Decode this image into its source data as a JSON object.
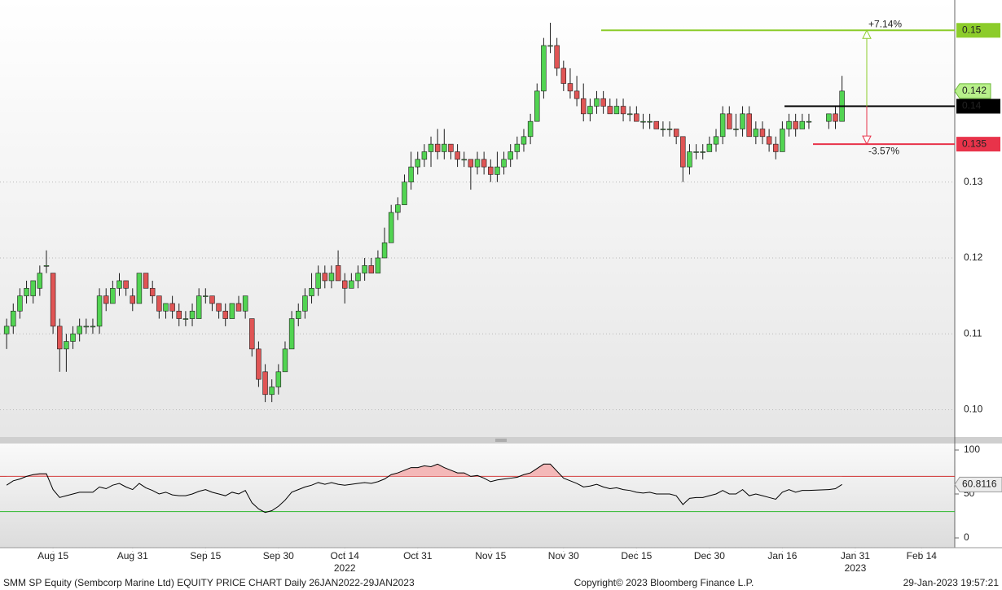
{
  "chart_data": [
    {
      "type": "candlestick",
      "up_color": "#52d452",
      "down_color": "#e05555",
      "outline": "#1e1e1e",
      "xlim": [
        "2022-08-03",
        "2023-02-21"
      ],
      "ylim": [
        0.0964,
        0.154
      ],
      "yticks": [
        {
          "value": 0.1,
          "label": "0.10"
        },
        0.11,
        0.12,
        0.13
      ],
      "grid": true,
      "xticks": [
        {
          "value": "2022-08-15",
          "label": "Aug 15"
        },
        {
          "value": "2022-08-31",
          "label": "Aug 31"
        },
        {
          "value": "2022-09-15",
          "label": "Sep 15"
        },
        {
          "value": "2022-09-30",
          "label": "Sep 30"
        },
        {
          "value": "2022-10-14",
          "label": "Oct 14"
        },
        {
          "value": "2022-10-31",
          "label": "Oct 31"
        },
        {
          "value": "2022-11-15",
          "label": "Nov 15"
        },
        {
          "value": "2022-11-30",
          "label": "Nov 30"
        },
        {
          "value": "2022-12-15",
          "label": "Dec 15"
        },
        {
          "value": "2022-12-30",
          "label": "Dec 30"
        },
        {
          "value": "2023-01-16",
          "label": "Jan 16"
        },
        {
          "value": "2023-01-31",
          "label": "Jan 31"
        },
        {
          "value": "2023-02-14",
          "label": "Feb 14"
        }
      ],
      "year_labels": [
        {
          "value": "2022-10-14",
          "label": "2022"
        },
        {
          "value": "2023-01-31",
          "label": "2023"
        }
      ],
      "levels": [
        {
          "value": 0.15,
          "color": "#8ccc2a"
        },
        {
          "value": 0.14,
          "color": "#000000"
        },
        {
          "value": 0.135,
          "color": "#e8334a"
        }
      ],
      "annotations": [
        "+7.14%",
        "-3.57%"
      ],
      "x": [
        "2022-08-04",
        "2022-08-05",
        "2022-08-08",
        "2022-08-09",
        "2022-08-10",
        "2022-08-11",
        "2022-08-12",
        "2022-08-15",
        "2022-08-16",
        "2022-08-17",
        "2022-08-18",
        "2022-08-19",
        "2022-08-22",
        "2022-08-23",
        "2022-08-24",
        "2022-08-25",
        "2022-08-26",
        "2022-08-29",
        "2022-08-30",
        "2022-08-31",
        "2022-09-01",
        "2022-09-02",
        "2022-09-05",
        "2022-09-06",
        "2022-09-07",
        "2022-09-08",
        "2022-09-09",
        "2022-09-12",
        "2022-09-13",
        "2022-09-14",
        "2022-09-15",
        "2022-09-16",
        "2022-09-19",
        "2022-09-20",
        "2022-09-21",
        "2022-09-22",
        "2022-09-23",
        "2022-09-26",
        "2022-09-27",
        "2022-09-28",
        "2022-09-29",
        "2022-09-30",
        "2022-10-03",
        "2022-10-04",
        "2022-10-05",
        "2022-10-06",
        "2022-10-07",
        "2022-10-10",
        "2022-10-11",
        "2022-10-12",
        "2022-10-13",
        "2022-10-14",
        "2022-10-17",
        "2022-10-18",
        "2022-10-19",
        "2022-10-20",
        "2022-10-21",
        "2022-10-24",
        "2022-10-25",
        "2022-10-26",
        "2022-10-27",
        "2022-10-28",
        "2022-10-31",
        "2022-11-01",
        "2022-11-02",
        "2022-11-03",
        "2022-11-04",
        "2022-11-07",
        "2022-11-08",
        "2022-11-09",
        "2022-11-10",
        "2022-11-11",
        "2022-11-14",
        "2022-11-15",
        "2022-11-16",
        "2022-11-17",
        "2022-11-18",
        "2022-11-21",
        "2022-11-22",
        "2022-11-23",
        "2022-11-24",
        "2022-11-25",
        "2022-11-28",
        "2022-11-29",
        "2022-11-30",
        "2022-12-01",
        "2022-12-02",
        "2022-12-05",
        "2022-12-06",
        "2022-12-07",
        "2022-12-08",
        "2022-12-09",
        "2022-12-12",
        "2022-12-13",
        "2022-12-14",
        "2022-12-15",
        "2022-12-16",
        "2022-12-19",
        "2022-12-20",
        "2022-12-21",
        "2022-12-22",
        "2022-12-23",
        "2022-12-26",
        "2022-12-27",
        "2022-12-28",
        "2022-12-29",
        "2022-12-30",
        "2023-01-02",
        "2023-01-03",
        "2023-01-04",
        "2023-01-05",
        "2023-01-06",
        "2023-01-09",
        "2023-01-10",
        "2023-01-11",
        "2023-01-12",
        "2023-01-13",
        "2023-01-16",
        "2023-01-17",
        "2023-01-18",
        "2023-01-19",
        "2023-01-20",
        "2023-01-25",
        "2023-01-26",
        "2023-01-27"
      ],
      "candles": [
        [
          0.11,
          0.112,
          0.108,
          0.111
        ],
        [
          0.111,
          0.114,
          0.11,
          0.113
        ],
        [
          0.113,
          0.116,
          0.112,
          0.115
        ],
        [
          0.115,
          0.117,
          0.114,
          0.116
        ],
        [
          0.115,
          0.117,
          0.114,
          0.117
        ],
        [
          0.116,
          0.119,
          0.115,
          0.118
        ],
        [
          0.119,
          0.121,
          0.118,
          0.119
        ],
        [
          0.118,
          0.118,
          0.11,
          0.111
        ],
        [
          0.111,
          0.112,
          0.105,
          0.108
        ],
        [
          0.108,
          0.11,
          0.105,
          0.109
        ],
        [
          0.109,
          0.111,
          0.108,
          0.11
        ],
        [
          0.11,
          0.112,
          0.109,
          0.111
        ],
        [
          0.111,
          0.112,
          0.11,
          0.111
        ],
        [
          0.111,
          0.112,
          0.11,
          0.111
        ],
        [
          0.111,
          0.116,
          0.11,
          0.115
        ],
        [
          0.115,
          0.116,
          0.113,
          0.114
        ],
        [
          0.114,
          0.117,
          0.114,
          0.116
        ],
        [
          0.116,
          0.118,
          0.115,
          0.117
        ],
        [
          0.117,
          0.117,
          0.115,
          0.116
        ],
        [
          0.115,
          0.116,
          0.113,
          0.114
        ],
        [
          0.114,
          0.118,
          0.114,
          0.118
        ],
        [
          0.118,
          0.118,
          0.116,
          0.116
        ],
        [
          0.116,
          0.117,
          0.114,
          0.115
        ],
        [
          0.115,
          0.115,
          0.112,
          0.113
        ],
        [
          0.113,
          0.114,
          0.112,
          0.114
        ],
        [
          0.114,
          0.115,
          0.112,
          0.113
        ],
        [
          0.113,
          0.114,
          0.111,
          0.112
        ],
        [
          0.112,
          0.113,
          0.111,
          0.112
        ],
        [
          0.112,
          0.114,
          0.111,
          0.113
        ],
        [
          0.112,
          0.116,
          0.112,
          0.115
        ],
        [
          0.115,
          0.116,
          0.114,
          0.115
        ],
        [
          0.115,
          0.115,
          0.113,
          0.114
        ],
        [
          0.114,
          0.114,
          0.112,
          0.113
        ],
        [
          0.113,
          0.114,
          0.111,
          0.112
        ],
        [
          0.112,
          0.114,
          0.112,
          0.114
        ],
        [
          0.114,
          0.115,
          0.113,
          0.113
        ],
        [
          0.113,
          0.115,
          0.112,
          0.115
        ],
        [
          0.112,
          0.112,
          0.107,
          0.108
        ],
        [
          0.108,
          0.109,
          0.103,
          0.104
        ],
        [
          0.105,
          0.106,
          0.101,
          0.102
        ],
        [
          0.102,
          0.104,
          0.101,
          0.103
        ],
        [
          0.103,
          0.106,
          0.102,
          0.105
        ],
        [
          0.105,
          0.109,
          0.105,
          0.108
        ],
        [
          0.108,
          0.113,
          0.108,
          0.112
        ],
        [
          0.112,
          0.114,
          0.111,
          0.113
        ],
        [
          0.113,
          0.116,
          0.112,
          0.115
        ],
        [
          0.115,
          0.118,
          0.114,
          0.116
        ],
        [
          0.116,
          0.119,
          0.115,
          0.118
        ],
        [
          0.118,
          0.119,
          0.116,
          0.117
        ],
        [
          0.117,
          0.119,
          0.116,
          0.118
        ],
        [
          0.119,
          0.121,
          0.117,
          0.117
        ],
        [
          0.117,
          0.118,
          0.114,
          0.116
        ],
        [
          0.116,
          0.118,
          0.116,
          0.117
        ],
        [
          0.117,
          0.119,
          0.116,
          0.118
        ],
        [
          0.118,
          0.12,
          0.117,
          0.119
        ],
        [
          0.119,
          0.12,
          0.118,
          0.118
        ],
        [
          0.118,
          0.121,
          0.118,
          0.12
        ],
        [
          0.12,
          0.124,
          0.12,
          0.122
        ],
        [
          0.122,
          0.127,
          0.122,
          0.126
        ],
        [
          0.126,
          0.128,
          0.125,
          0.127
        ],
        [
          0.127,
          0.131,
          0.127,
          0.13
        ],
        [
          0.13,
          0.134,
          0.129,
          0.132
        ],
        [
          0.132,
          0.134,
          0.131,
          0.133
        ],
        [
          0.133,
          0.135,
          0.132,
          0.134
        ],
        [
          0.134,
          0.136,
          0.132,
          0.135
        ],
        [
          0.135,
          0.137,
          0.133,
          0.134
        ],
        [
          0.134,
          0.137,
          0.133,
          0.135
        ],
        [
          0.135,
          0.135,
          0.133,
          0.134
        ],
        [
          0.134,
          0.135,
          0.132,
          0.133
        ],
        [
          0.133,
          0.134,
          0.132,
          0.133
        ],
        [
          0.133,
          0.133,
          0.129,
          0.132
        ],
        [
          0.132,
          0.134,
          0.131,
          0.133
        ],
        [
          0.133,
          0.134,
          0.131,
          0.132
        ],
        [
          0.132,
          0.133,
          0.13,
          0.131
        ],
        [
          0.131,
          0.134,
          0.13,
          0.132
        ],
        [
          0.132,
          0.134,
          0.131,
          0.133
        ],
        [
          0.133,
          0.135,
          0.132,
          0.134
        ],
        [
          0.134,
          0.136,
          0.133,
          0.135
        ],
        [
          0.135,
          0.137,
          0.134,
          0.136
        ],
        [
          0.136,
          0.139,
          0.135,
          0.138
        ],
        [
          0.138,
          0.143,
          0.138,
          0.142
        ],
        [
          0.142,
          0.149,
          0.141,
          0.148
        ],
        [
          0.148,
          0.151,
          0.147,
          0.148
        ],
        [
          0.148,
          0.149,
          0.144,
          0.145
        ],
        [
          0.145,
          0.146,
          0.142,
          0.143
        ],
        [
          0.143,
          0.145,
          0.141,
          0.142
        ],
        [
          0.142,
          0.144,
          0.14,
          0.141
        ],
        [
          0.141,
          0.143,
          0.138,
          0.139
        ],
        [
          0.139,
          0.141,
          0.138,
          0.14
        ],
        [
          0.14,
          0.142,
          0.139,
          0.141
        ],
        [
          0.141,
          0.142,
          0.139,
          0.14
        ],
        [
          0.14,
          0.141,
          0.139,
          0.139
        ],
        [
          0.139,
          0.141,
          0.139,
          0.14
        ],
        [
          0.14,
          0.141,
          0.138,
          0.139
        ],
        [
          0.139,
          0.14,
          0.138,
          0.139
        ],
        [
          0.139,
          0.14,
          0.138,
          0.138
        ],
        [
          0.138,
          0.139,
          0.137,
          0.138
        ],
        [
          0.138,
          0.139,
          0.137,
          0.138
        ],
        [
          0.138,
          0.138,
          0.137,
          0.137
        ],
        [
          0.137,
          0.138,
          0.136,
          0.137
        ],
        [
          0.137,
          0.138,
          0.136,
          0.137
        ],
        [
          0.137,
          0.137,
          0.135,
          0.136
        ],
        [
          0.136,
          0.136,
          0.13,
          0.132
        ],
        [
          0.132,
          0.135,
          0.131,
          0.134
        ],
        [
          0.134,
          0.135,
          0.133,
          0.134
        ],
        [
          0.134,
          0.135,
          0.133,
          0.134
        ],
        [
          0.134,
          0.136,
          0.134,
          0.135
        ],
        [
          0.135,
          0.137,
          0.134,
          0.136
        ],
        [
          0.136,
          0.14,
          0.135,
          0.139
        ],
        [
          0.139,
          0.14,
          0.137,
          0.137
        ],
        [
          0.137,
          0.139,
          0.136,
          0.137
        ],
        [
          0.137,
          0.14,
          0.136,
          0.139
        ],
        [
          0.139,
          0.14,
          0.136,
          0.136
        ],
        [
          0.136,
          0.138,
          0.135,
          0.137
        ],
        [
          0.137,
          0.138,
          0.135,
          0.136
        ],
        [
          0.136,
          0.137,
          0.134,
          0.135
        ],
        [
          0.135,
          0.136,
          0.133,
          0.134
        ],
        [
          0.134,
          0.138,
          0.134,
          0.137
        ],
        [
          0.137,
          0.139,
          0.136,
          0.138
        ],
        [
          0.138,
          0.139,
          0.136,
          0.137
        ],
        [
          0.137,
          0.139,
          0.137,
          0.138
        ],
        [
          0.138,
          0.139,
          0.137,
          0.138
        ],
        [
          0.138,
          0.139,
          0.137,
          0.139
        ],
        [
          0.139,
          0.14,
          0.137,
          0.138
        ],
        [
          0.138,
          0.144,
          0.138,
          0.142
        ]
      ]
    },
    {
      "type": "line",
      "ylim": [
        -11.1,
        107.4
      ],
      "yticks": [
        0,
        50,
        100
      ],
      "bands": [
        {
          "value": 70,
          "color": "#d03030",
          "fill": "#f4b8b8"
        },
        {
          "value": 30,
          "color": "#2cb82c"
        }
      ],
      "series": [
        {
          "color": "#000000",
          "values": [
            60,
            65,
            67,
            70,
            72,
            73,
            73,
            55,
            46,
            48,
            50,
            52,
            52,
            52,
            58,
            56,
            60,
            62,
            58,
            55,
            62,
            57,
            54,
            50,
            52,
            49,
            48,
            48,
            50,
            53,
            55,
            52,
            50,
            48,
            52,
            50,
            54,
            40,
            33,
            29,
            31,
            36,
            43,
            52,
            55,
            58,
            60,
            63,
            61,
            63,
            61,
            60,
            61,
            62,
            63,
            62,
            64,
            67,
            72,
            74,
            77,
            80,
            80,
            82,
            81,
            84,
            80,
            77,
            74,
            74,
            70,
            71,
            68,
            64,
            66,
            67,
            68,
            69,
            72,
            74,
            79,
            84,
            84,
            76,
            68,
            65,
            62,
            58,
            59,
            61,
            58,
            56,
            57,
            55,
            54,
            52,
            51,
            52,
            50,
            50,
            50,
            48,
            38,
            45,
            46,
            46,
            48,
            50,
            54,
            50,
            50,
            55,
            48,
            50,
            48,
            46,
            44,
            52,
            55,
            52,
            54,
            54,
            55,
            56,
            60.8116
          ]
        }
      ]
    }
  ],
  "footer": {
    "left": "SMM SP Equity (Sembcorp Marine Ltd) EQUITY PRICE CHART  Daily 26JAN2022-29JAN2023",
    "center": "Copyright© 2023 Bloomberg Finance L.P.",
    "right": "29-Jan-2023 19:57:21"
  }
}
